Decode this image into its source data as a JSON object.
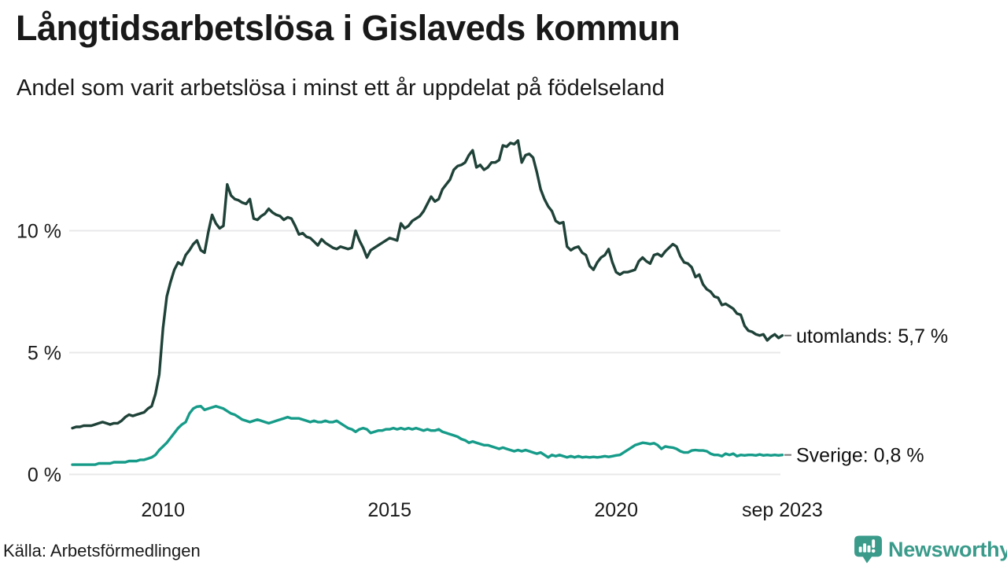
{
  "header": {
    "title": "Långtidsarbetslösa i Gislaveds kommun",
    "subtitle": "Andel som varit arbetslösa i minst ett år uppdelat på födelseland"
  },
  "footer": {
    "source": "Källa: Arbetsförmedlingen",
    "brand": "Newsworthy",
    "brand_icon": "speech-bubble-bar-chart-icon"
  },
  "colors": {
    "foreign_born_line": "#1f4238",
    "sweden_born_line": "#169b89",
    "brand": "#3a9b8b",
    "grid": "#e8e8ea",
    "connector": "#777777",
    "text": "#1a1a1a"
  },
  "chart_data": {
    "type": "line",
    "title": "Långtidsarbetslösa i Gislaveds kommun",
    "subtitle": "Andel som varit arbetslösa i minst ett år uppdelat på födelseland",
    "source": "Källa: Arbetsförmedlingen",
    "unit": "%",
    "x_unit": "month",
    "x_start": "2008-01",
    "x_end": "2023-09",
    "ylim": [
      0,
      14
    ],
    "grid": "horizontal",
    "legend": "end-labels",
    "y_ticks": [
      {
        "value": 0,
        "label": "0 %"
      },
      {
        "value": 5,
        "label": "5 %"
      },
      {
        "value": 10,
        "label": "10 %"
      }
    ],
    "x_ticks": [
      {
        "t": 2010,
        "label": "2010"
      },
      {
        "t": 2015,
        "label": "2015"
      },
      {
        "t": 2020,
        "label": "2020"
      },
      {
        "t": 2023.667,
        "label": "sep 2023"
      }
    ],
    "series": [
      {
        "id": "utomlands",
        "name": "utomlands",
        "end_label": "utomlands: 5,7 %",
        "end_value": 5.7,
        "color": "#1f4238",
        "values": [
          1.9,
          1.95,
          1.95,
          2.0,
          2.0,
          2.0,
          2.05,
          2.1,
          2.15,
          2.1,
          2.05,
          2.1,
          2.1,
          2.2,
          2.35,
          2.45,
          2.4,
          2.45,
          2.5,
          2.55,
          2.7,
          2.8,
          3.3,
          4.1,
          6.0,
          7.3,
          7.9,
          8.4,
          8.7,
          8.6,
          9.0,
          9.2,
          9.45,
          9.6,
          9.2,
          9.1,
          9.95,
          10.65,
          10.3,
          10.1,
          10.2,
          11.9,
          11.45,
          11.3,
          11.25,
          11.15,
          11.1,
          11.3,
          10.5,
          10.45,
          10.6,
          10.7,
          10.9,
          10.75,
          10.65,
          10.6,
          10.45,
          10.55,
          10.5,
          10.2,
          9.85,
          9.9,
          9.75,
          9.7,
          9.55,
          9.4,
          9.65,
          9.5,
          9.4,
          9.3,
          9.25,
          9.35,
          9.3,
          9.25,
          9.3,
          10.0,
          9.6,
          9.3,
          8.9,
          9.2,
          9.3,
          9.4,
          9.5,
          9.6,
          9.7,
          9.65,
          9.6,
          10.3,
          10.1,
          10.2,
          10.4,
          10.5,
          10.6,
          10.8,
          11.1,
          11.4,
          11.2,
          11.3,
          11.7,
          11.9,
          12.1,
          12.5,
          12.65,
          12.7,
          12.8,
          13.1,
          13.3,
          12.6,
          12.7,
          12.5,
          12.6,
          12.8,
          12.8,
          12.9,
          13.5,
          13.45,
          13.6,
          13.55,
          13.7,
          12.8,
          13.1,
          13.15,
          13.0,
          12.4,
          11.7,
          11.3,
          11.0,
          10.8,
          10.4,
          10.3,
          10.35,
          9.35,
          9.2,
          9.3,
          9.35,
          9.1,
          9.0,
          8.55,
          8.4,
          8.7,
          8.9,
          9.0,
          9.25,
          8.7,
          8.3,
          8.2,
          8.3,
          8.3,
          8.35,
          8.4,
          8.75,
          8.9,
          8.75,
          8.65,
          9.0,
          9.05,
          8.95,
          9.15,
          9.3,
          9.45,
          9.35,
          8.95,
          8.7,
          8.65,
          8.5,
          8.1,
          8.2,
          7.8,
          7.6,
          7.5,
          7.3,
          7.25,
          6.95,
          7.0,
          6.9,
          6.8,
          6.6,
          6.55,
          6.1,
          5.9,
          5.85,
          5.75,
          5.7,
          5.75,
          5.5,
          5.65,
          5.75,
          5.6,
          5.7
        ]
      },
      {
        "id": "sverige",
        "name": "Sverige",
        "end_label": "Sverige: 0,8 %",
        "end_value": 0.8,
        "color": "#169b89",
        "values": [
          0.4,
          0.4,
          0.4,
          0.4,
          0.4,
          0.4,
          0.4,
          0.45,
          0.45,
          0.45,
          0.45,
          0.5,
          0.5,
          0.5,
          0.5,
          0.55,
          0.55,
          0.55,
          0.6,
          0.6,
          0.65,
          0.7,
          0.8,
          1.0,
          1.15,
          1.3,
          1.5,
          1.7,
          1.9,
          2.05,
          2.15,
          2.5,
          2.7,
          2.78,
          2.8,
          2.65,
          2.7,
          2.75,
          2.8,
          2.75,
          2.7,
          2.6,
          2.5,
          2.45,
          2.35,
          2.25,
          2.2,
          2.15,
          2.2,
          2.25,
          2.2,
          2.15,
          2.1,
          2.15,
          2.2,
          2.25,
          2.3,
          2.35,
          2.3,
          2.3,
          2.3,
          2.25,
          2.2,
          2.15,
          2.2,
          2.15,
          2.15,
          2.2,
          2.15,
          2.15,
          2.2,
          2.1,
          2.0,
          1.9,
          1.85,
          1.75,
          1.85,
          1.9,
          1.85,
          1.7,
          1.75,
          1.8,
          1.8,
          1.85,
          1.85,
          1.9,
          1.85,
          1.9,
          1.85,
          1.9,
          1.85,
          1.9,
          1.85,
          1.8,
          1.85,
          1.8,
          1.8,
          1.85,
          1.75,
          1.7,
          1.65,
          1.6,
          1.55,
          1.45,
          1.4,
          1.3,
          1.35,
          1.3,
          1.25,
          1.2,
          1.2,
          1.15,
          1.1,
          1.05,
          1.1,
          1.05,
          1.0,
          0.95,
          1.0,
          0.95,
          1.0,
          0.95,
          0.9,
          0.85,
          0.9,
          0.8,
          0.7,
          0.8,
          0.75,
          0.8,
          0.75,
          0.7,
          0.75,
          0.7,
          0.75,
          0.7,
          0.72,
          0.7,
          0.72,
          0.7,
          0.72,
          0.75,
          0.72,
          0.75,
          0.78,
          0.8,
          0.9,
          1.0,
          1.1,
          1.2,
          1.25,
          1.3,
          1.28,
          1.25,
          1.28,
          1.2,
          1.05,
          1.15,
          1.12,
          1.1,
          1.05,
          0.95,
          0.9,
          0.9,
          0.98,
          1.0,
          0.98,
          0.98,
          0.95,
          0.85,
          0.8,
          0.8,
          0.75,
          0.85,
          0.8,
          0.85,
          0.75,
          0.8,
          0.78,
          0.8,
          0.8,
          0.78,
          0.82,
          0.78,
          0.8,
          0.78,
          0.8,
          0.78,
          0.8
        ]
      }
    ]
  }
}
